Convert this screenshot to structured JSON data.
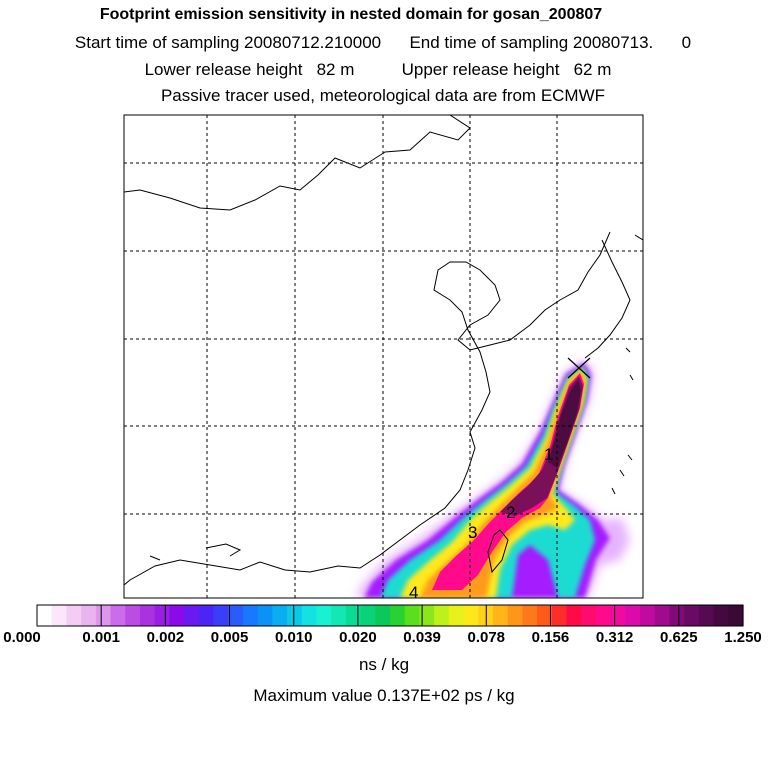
{
  "header": {
    "title": "Footprint emission sensitivity in nested domain for gosan_200807",
    "sampling_line": "Start time of sampling 20080712.210000      End time of sampling 20080713.      0",
    "release_line": "Lower release height   82 m          Upper release height   62 m",
    "tracer_line": "Passive tracer used, meteorological data are from ECMWF"
  },
  "map": {
    "day_labels": [
      "1",
      "2",
      "3",
      "4"
    ],
    "receptor_marker": "receptor-cross",
    "colors": {
      "max": "#4b0d3f",
      "high": "#7a0f5a",
      "magenta": "#ff0a8c",
      "red": "#ff1a3c",
      "orange": "#ff9a1a",
      "yellow": "#ffe81a",
      "green": "#8ae61a",
      "cyan": "#1adcd2",
      "blue": "#1a66ff",
      "violet": "#a41aff",
      "light": "#e6b3ff"
    }
  },
  "colorbar": {
    "ticks": [
      "0.000",
      "0.001",
      "0.002",
      "0.005",
      "0.010",
      "0.020",
      "0.039",
      "0.078",
      "0.156",
      "0.312",
      "0.625",
      "1.250"
    ],
    "colors": [
      "#ffffff",
      "#fbe6fb",
      "#f4cdf4",
      "#eab4f0",
      "#dc96ec",
      "#cc6ce8",
      "#bb4ce4",
      "#a933e0",
      "#9a1ee6",
      "#8a0aeb",
      "#6a1af0",
      "#4c24f6",
      "#3a3ef9",
      "#2a5cfc",
      "#1878ff",
      "#0a92f5",
      "#0aaef0",
      "#0ac8e6",
      "#14e2e2",
      "#1af0d2",
      "#14e6b4",
      "#0adc96",
      "#0ad278",
      "#0ac85a",
      "#28d232",
      "#5ade1e",
      "#8ce61a",
      "#bef01a",
      "#e6f01a",
      "#ffe81a",
      "#ffd21a",
      "#ffb41a",
      "#ff961a",
      "#ff781a",
      "#ff5a1a",
      "#ff2d28",
      "#ff0a46",
      "#ff0a6e",
      "#ff0a8c",
      "#f00aa0",
      "#dc0aaa",
      "#c00aa0",
      "#a00a8c",
      "#820a78",
      "#6a0a64",
      "#560a52",
      "#46093f",
      "#3c0835"
    ],
    "unit": "ns / kg"
  },
  "footer": {
    "max_value": "Maximum value  0.137E+02 ps / kg"
  }
}
